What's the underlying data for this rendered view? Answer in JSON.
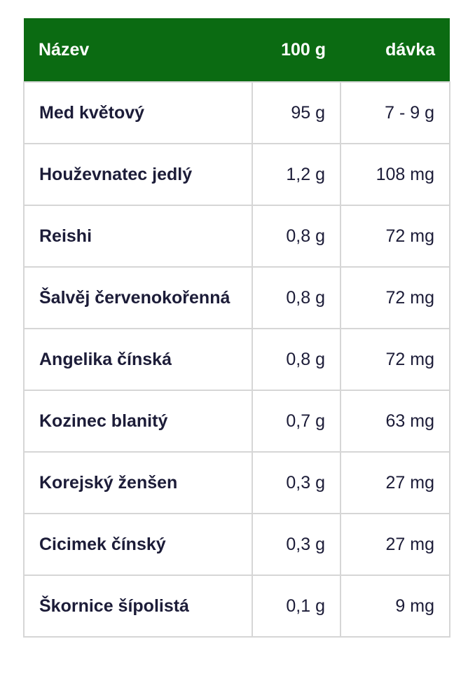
{
  "table": {
    "header": [
      "Název",
      "100 g",
      "dávka"
    ],
    "rows": [
      [
        "Med květový",
        "95 g",
        "7 - 9 g"
      ],
      [
        "Houževnatec jedlý",
        "1,2 g",
        "108 mg"
      ],
      [
        "Reishi",
        "0,8 g",
        "72 mg"
      ],
      [
        "Šalvěj červenokořenná",
        "0,8 g",
        "72 mg"
      ],
      [
        "Angelika čínská",
        "0,8 g",
        "72 mg"
      ],
      [
        "Kozinec blanitý",
        "0,7 g",
        "63 mg"
      ],
      [
        "Korejský ženšen",
        "0,3 g",
        "27 mg"
      ],
      [
        "Cicimek čínský",
        "0,3 g",
        "27 mg"
      ],
      [
        "Škornice šípolistá",
        "0,1 g",
        "9 mg"
      ]
    ]
  }
}
